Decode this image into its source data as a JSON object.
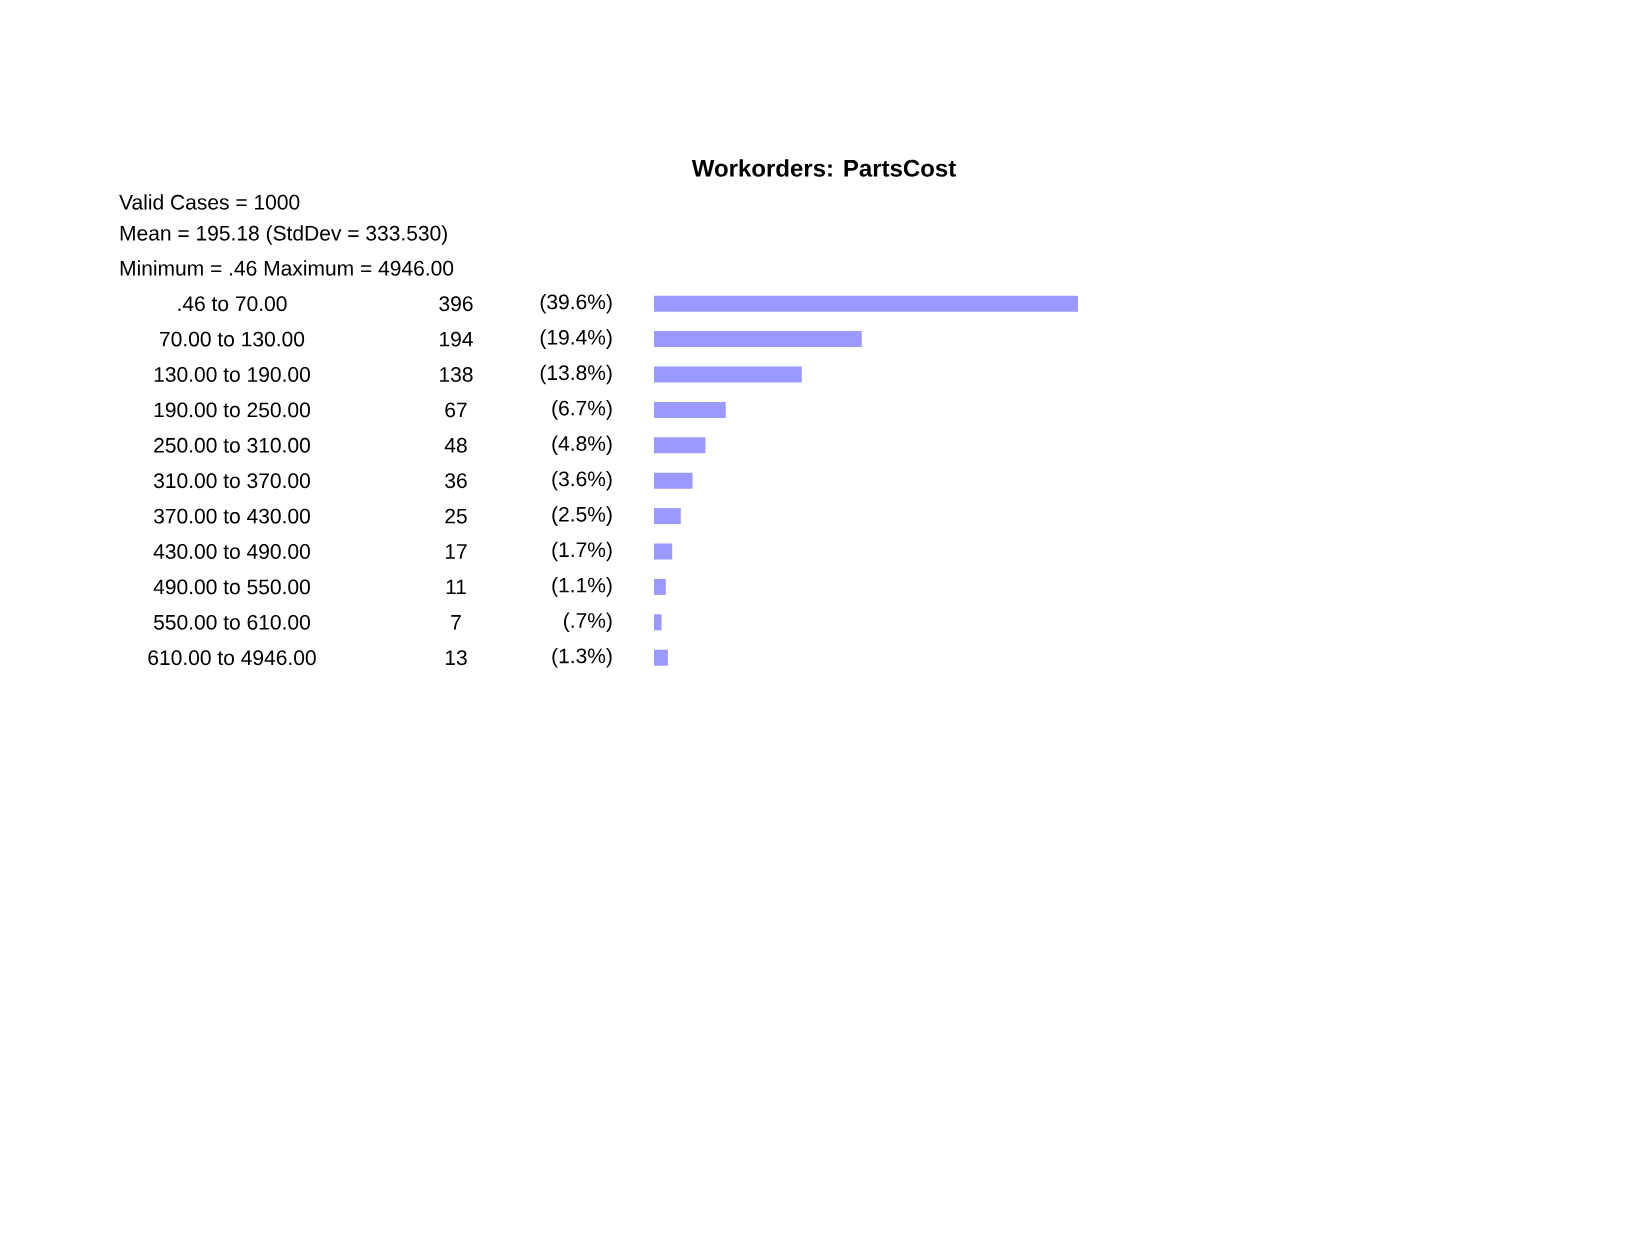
{
  "chart_data": {
    "type": "bar",
    "orientation": "horizontal",
    "title": "Workorders: PartsCost",
    "categories": [
      ".46 to 70.00",
      "70.00 to 130.00",
      "130.00 to 190.00",
      "190.00 to 250.00",
      "250.00 to 310.00",
      "310.00 to 370.00",
      "370.00 to 430.00",
      "430.00 to 490.00",
      "490.00 to 550.00",
      "550.00 to 610.00",
      "610.00 to 4946.00"
    ],
    "values": [
      396,
      194,
      138,
      67,
      48,
      36,
      25,
      17,
      11,
      7,
      13
    ],
    "color": "#9999ff",
    "data_labels": true,
    "annotations": [
      "Valid Cases = 1000",
      "Mean = 195.18  (StdDev = 333.530)",
      "Minimum = .46  Maximum = 4946.00",
      "(39.6%)",
      "(19.4%)",
      "(13.8%)",
      "(6.7%)",
      "(4.8%)",
      "(3.6%)",
      "(2.5%)",
      "(1.7%)",
      "(1.1%)",
      "(.7%)",
      "(1.3%)"
    ]
  }
}
